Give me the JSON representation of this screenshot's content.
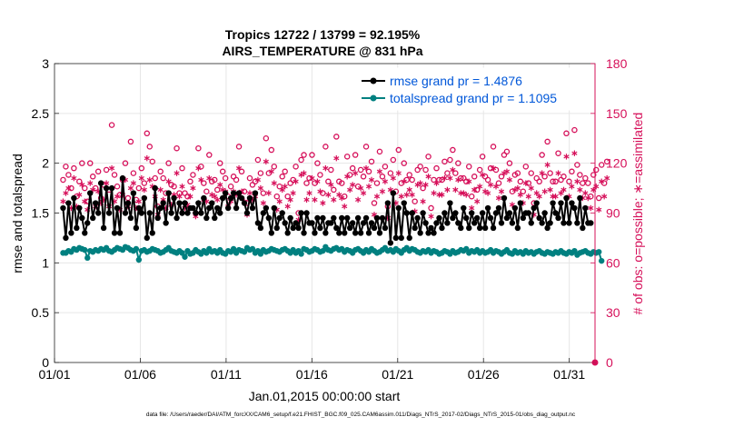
{
  "chart_data": {
    "type": "line",
    "title_line1": "Tropics 12722 / 13799 = 92.195%",
    "title_line2": "AIRS_TEMPERATURE @ 831 hPa",
    "xlabel": "Jan.01,2015 00:00:00 start",
    "ylabel_left": "rmse and totalspread",
    "ylabel_right": "# of obs: o=possible; ∗=assimilated",
    "xlim": [
      0,
      31.5
    ],
    "ylim_left": [
      0,
      3
    ],
    "ylim_right": [
      0,
      180
    ],
    "x_ticks": [
      0,
      5,
      10,
      15,
      20,
      25,
      30
    ],
    "x_tick_labels": [
      "01/01",
      "01/06",
      "01/11",
      "01/16",
      "01/21",
      "01/26",
      "01/31"
    ],
    "y_ticks_left": [
      "0",
      "0.5",
      "1",
      "1.5",
      "2",
      "2.5",
      "3"
    ],
    "y_ticks_right": [
      "0",
      "30",
      "60",
      "90",
      "120",
      "150",
      "180"
    ],
    "grid": true,
    "legend_position": "top-right",
    "series": [
      {
        "name": "rmse grand pr = 1.4876",
        "axis": "left",
        "color": "#000000",
        "marker": "circle-filled",
        "values": [
          1.55,
          1.25,
          1.6,
          1.3,
          1.65,
          1.35,
          1.55,
          1.45,
          1.3,
          1.4,
          1.7,
          1.45,
          1.6,
          1.5,
          1.8,
          1.35,
          1.75,
          1.5,
          1.75,
          1.3,
          1.55,
          1.3,
          1.85,
          1.5,
          1.6,
          1.45,
          1.7,
          1.35,
          1.55,
          1.5,
          1.65,
          1.25,
          1.5,
          1.3,
          1.75,
          1.45,
          1.55,
          1.6,
          1.4,
          1.7,
          1.5,
          1.65,
          1.45,
          1.6,
          1.5,
          1.6,
          1.5,
          1.55,
          1.55,
          1.5,
          1.6,
          1.5,
          1.65,
          1.45,
          1.55,
          1.6,
          1.45,
          1.55,
          1.5,
          1.65,
          1.7,
          1.55,
          1.65,
          1.7,
          1.55,
          1.7,
          1.65,
          1.6,
          1.5,
          1.65,
          1.55,
          1.7,
          1.4,
          1.35,
          1.5,
          1.55,
          1.45,
          1.3,
          1.55,
          1.35,
          1.45,
          1.5,
          1.4,
          1.3,
          1.45,
          1.35,
          1.4,
          1.35,
          1.5,
          1.3,
          1.5,
          1.4,
          1.4,
          1.3,
          1.45,
          1.35,
          1.45,
          1.3,
          1.4,
          1.4,
          1.45,
          1.35,
          1.3,
          1.45,
          1.3,
          1.45,
          1.35,
          1.4,
          1.3,
          1.45,
          1.3,
          1.4,
          1.45,
          1.3,
          1.4,
          1.35,
          1.45,
          1.3,
          1.45,
          1.35,
          1.6,
          1.2,
          1.7,
          1.25,
          1.55,
          1.25,
          1.6,
          1.5,
          1.25,
          1.5,
          1.35,
          1.45,
          1.3,
          1.5,
          1.4,
          1.3,
          1.35,
          1.3,
          1.4,
          1.45,
          1.35,
          1.5,
          1.4,
          1.6,
          1.45,
          1.5,
          1.4,
          1.35,
          1.55,
          1.45,
          1.35,
          1.5,
          1.4,
          1.45,
          1.35,
          1.5,
          1.35,
          1.55,
          1.45,
          1.35,
          1.5,
          1.55,
          1.4,
          1.65,
          1.45,
          1.5,
          1.4,
          1.55,
          1.35,
          1.6,
          1.45,
          1.5,
          1.5,
          1.4,
          1.55,
          1.6,
          1.45,
          1.4,
          1.5,
          1.35,
          1.4,
          1.6,
          1.5,
          1.45,
          1.6,
          1.4,
          1.65,
          1.4,
          1.6,
          1.55,
          1.4,
          1.65,
          1.35,
          1.55,
          1.4,
          1.4
        ]
      },
      {
        "name": "totalspread grand pr = 1.1095",
        "axis": "left",
        "color": "#008080",
        "marker": "circle-filled",
        "values": [
          1.1,
          1.1,
          1.12,
          1.11,
          1.14,
          1.13,
          1.15,
          1.14,
          1.13,
          1.05,
          1.12,
          1.11,
          1.13,
          1.12,
          1.14,
          1.13,
          1.15,
          1.12,
          1.11,
          1.13,
          1.15,
          1.14,
          1.13,
          1.16,
          1.15,
          1.13,
          1.12,
          1.14,
          1.03,
          1.12,
          1.13,
          1.11,
          1.12,
          1.14,
          1.13,
          1.12,
          1.1,
          1.11,
          1.13,
          1.15,
          1.12,
          1.11,
          1.1,
          1.12,
          1.1,
          1.06,
          1.12,
          1.09,
          1.1,
          1.13,
          1.11,
          1.09,
          1.12,
          1.1,
          1.14,
          1.11,
          1.12,
          1.1,
          1.13,
          1.1,
          1.09,
          1.12,
          1.11,
          1.14,
          1.1,
          1.13,
          1.12,
          1.11,
          1.15,
          1.13,
          1.14,
          1.1,
          1.12,
          1.09,
          1.13,
          1.11,
          1.12,
          1.14,
          1.13,
          1.12,
          1.11,
          1.13,
          1.14,
          1.12,
          1.1,
          1.13,
          1.1,
          1.12,
          1.09,
          1.14,
          1.13,
          1.11,
          1.12,
          1.14,
          1.13,
          1.11,
          1.12,
          1.16,
          1.13,
          1.12,
          1.14,
          1.15,
          1.13,
          1.14,
          1.11,
          1.13,
          1.12,
          1.1,
          1.13,
          1.14,
          1.12,
          1.1,
          1.13,
          1.11,
          1.14,
          1.12,
          1.1,
          1.11,
          1.13,
          1.15,
          1.12,
          1.13,
          1.11,
          1.14,
          1.12,
          1.1,
          1.13,
          1.15,
          1.12,
          1.14,
          1.13,
          1.11,
          1.1,
          1.12,
          1.11,
          1.13,
          1.1,
          1.12,
          1.11,
          1.09,
          1.1,
          1.12,
          1.11,
          1.09,
          1.12,
          1.1,
          1.11,
          1.13,
          1.12,
          1.14,
          1.1,
          1.12,
          1.11,
          1.13,
          1.1,
          1.12,
          1.1,
          1.11,
          1.13,
          1.1,
          1.12,
          1.11,
          1.09,
          1.11,
          1.13,
          1.1,
          1.09,
          1.12,
          1.1,
          1.11,
          1.09,
          1.12,
          1.1,
          1.11,
          1.09,
          1.11,
          1.12,
          1.1,
          1.09,
          1.11,
          1.1,
          1.09,
          1.11,
          1.1,
          1.12,
          1.1,
          1.09,
          1.11,
          1.1,
          1.12,
          1.08,
          1.1,
          1.11,
          1.12,
          1.1,
          1.09,
          1.11,
          1.1,
          1.11,
          1.02
        ]
      },
      {
        "name": "possible obs count",
        "axis": "right",
        "color": "#d6105a",
        "marker": "circle-open",
        "values": [
          110,
          118,
          113,
          105,
          117,
          100,
          109,
          120,
          105,
          97,
          120,
          112,
          105,
          115,
          99,
          107,
          116,
          104,
          143,
          113,
          106,
          101,
          110,
          120,
          99,
          133,
          114,
          98,
          105,
          117,
          108,
          138,
          130,
          121,
          111,
          94,
          115,
          111,
          102,
          120,
          107,
          106,
          129,
          102,
          117,
          102,
          100,
          109,
          113,
          90,
          129,
          118,
          108,
          103,
          125,
          109,
          110,
          104,
          120,
          115,
          111,
          100,
          106,
          112,
          110,
          130,
          115,
          103,
          96,
          111,
          107,
          109,
          122,
          114,
          102,
          135,
          114,
          128,
          118,
          100,
          106,
          112,
          115,
          100,
          108,
          110,
          118,
          90,
          122,
          125,
          108,
          111,
          125,
          108,
          120,
          113,
          102,
          130,
          109,
          116,
          104,
          136,
          109,
          108,
          100,
          124,
          113,
          117,
          125,
          106,
          116,
          112,
          130,
          115,
          121,
          96,
          108,
          127,
          112,
          118,
          94,
          114,
          122,
          103,
          128,
          108,
          120,
          110,
          113,
          110,
          97,
          116,
          118,
          105,
          116,
          124,
          93,
          110,
          117,
          110,
          110,
          121,
          114,
          122,
          128,
          114,
          120,
          111,
          111,
          109,
          118,
          100,
          112,
          104,
          116,
          124,
          112,
          110,
          117,
          130,
          116,
          108,
          112,
          125,
          127,
          120,
          103,
          113,
          114,
          109,
          103,
          118,
          108,
          114,
          96,
          111,
          109,
          125,
          112,
          133,
          114,
          109,
          109,
          126,
          110,
          112,
          138,
          109,
          115,
          140,
          119,
          113,
          108,
          111,
          108,
          100,
          113,
          116,
          99,
          119,
          108,
          121
        ]
      },
      {
        "name": "assimilated obs count",
        "axis": "right",
        "color": "#d6105a",
        "marker": "asterisk",
        "values": [
          97,
          102,
          105,
          93,
          111,
          94,
          101,
          107,
          97,
          92,
          108,
          104,
          94,
          103,
          96,
          98,
          108,
          94,
          117,
          97,
          100,
          92,
          101,
          110,
          94,
          105,
          108,
          93,
          97,
          111,
          104,
          123,
          110,
          106,
          100,
          89,
          104,
          98,
          93,
          109,
          95,
          101,
          114,
          100,
          106,
          93,
          95,
          100,
          105,
          88,
          117,
          110,
          98,
          97,
          111,
          101,
          100,
          98,
          107,
          104,
          103,
          94,
          97,
          103,
          101,
          117,
          103,
          97,
          89,
          102,
          98,
          100,
          110,
          105,
          96,
          121,
          102,
          115,
          108,
          92,
          97,
          104,
          106,
          94,
          98,
          102,
          109,
          86,
          113,
          114,
          98,
          102,
          111,
          98,
          109,
          103,
          96,
          117,
          101,
          107,
          98,
          123,
          101,
          99,
          94,
          112,
          104,
          107,
          114,
          98,
          105,
          102,
          117,
          106,
          110,
          89,
          100,
          115,
          103,
          109,
          87,
          104,
          111,
          96,
          114,
          100,
          109,
          101,
          104,
          101,
          91,
          107,
          108,
          97,
          107,
          112,
          88,
          102,
          108,
          101,
          101,
          111,
          104,
          111,
          116,
          104,
          110,
          102,
          102,
          101,
          109,
          93,
          104,
          97,
          106,
          113,
          103,
          102,
          107,
          117,
          106,
          99,
          103,
          114,
          115,
          110,
          95,
          104,
          105,
          101,
          96,
          108,
          100,
          105,
          89,
          102,
          100,
          114,
          103,
          119,
          104,
          100,
          100,
          114,
          102,
          104,
          124,
          100,
          106,
          126,
          109,
          104,
          99,
          102,
          99,
          93,
          104,
          106,
          92,
          109,
          100,
          111
        ]
      }
    ]
  },
  "footer_text": "data file: /Users/raeder/DAI/ATM_forcXX/CAM6_setup/f.e21.FHIST_BGC.f09_025.CAM6assim.011/Diags_NTrS_2017-02/Diags_NTrS_2015-01/obs_diag_output.nc"
}
